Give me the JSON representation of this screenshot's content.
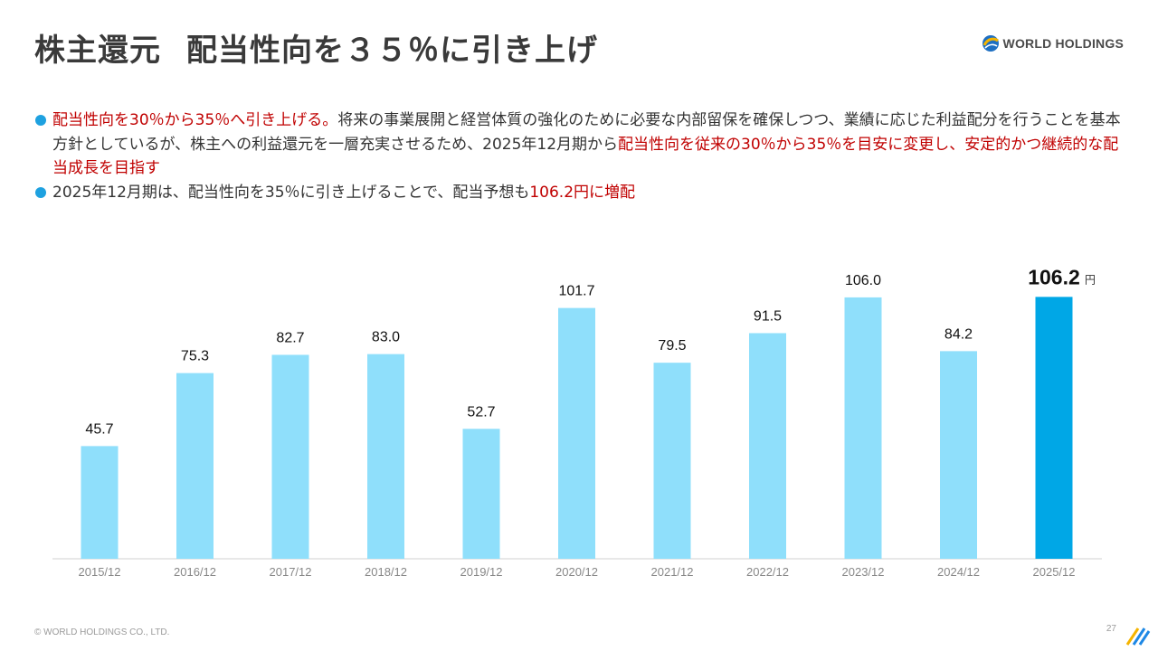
{
  "header": {
    "title_main": "株主還元",
    "title_sub": "配当性向を３５％に引き上げ",
    "logo_text": "WORLD HOLDINGS",
    "logo_icon": "globe-swirl-icon"
  },
  "bullets": [
    {
      "segments": [
        {
          "text": "配当性向を30％から35％へ引き上げる。",
          "emphasis": true
        },
        {
          "text": "将来の事業展開と経営体質の強化のために必要な内部留保を確保しつつ、業績に応じた利益配分を行うことを基本方針としているが、株主への利益還元を一層充実させるため、2025年12月期から",
          "emphasis": false
        },
        {
          "text": "配当性向を従来の30％から35％を目安に変更し、安定的かつ継続的な配当成長を目指す",
          "emphasis": true
        }
      ]
    },
    {
      "segments": [
        {
          "text": "2025年12月期は、配当性向を35％に引き上げることで、配当予想も",
          "emphasis": false
        },
        {
          "text": "106.2円に増配",
          "emphasis": true
        }
      ]
    }
  ],
  "chart_data": {
    "type": "bar",
    "categories": [
      "2015/12",
      "2016/12",
      "2017/12",
      "2018/12",
      "2019/12",
      "2020/12",
      "2021/12",
      "2022/12",
      "2023/12",
      "2024/12",
      "2025/12"
    ],
    "values": [
      45.7,
      75.3,
      82.7,
      83.0,
      52.7,
      101.7,
      79.5,
      91.5,
      106.0,
      84.2,
      106.2
    ],
    "data_labels": [
      "45.7",
      "75.3",
      "82.7",
      "83.0",
      "52.7",
      "101.7",
      "79.5",
      "91.5",
      "106.0",
      "84.2",
      "106.2"
    ],
    "highlight_index": 10,
    "highlight_unit": "円",
    "ylim": [
      0,
      110
    ],
    "grid": false,
    "title": "",
    "xlabel": "",
    "ylabel": "",
    "colors": {
      "bar": "#8fdffb",
      "highlight": "#00a7e6"
    }
  },
  "footer": {
    "copyright": "© WORLD HOLDINGS CO., LTD.",
    "page_number": "27",
    "corner_icon": "diagonal-stripes-icon"
  },
  "colors": {
    "accent": "#1ea1e0",
    "emphasis": "#c00000",
    "title": "#3a3a3a"
  }
}
